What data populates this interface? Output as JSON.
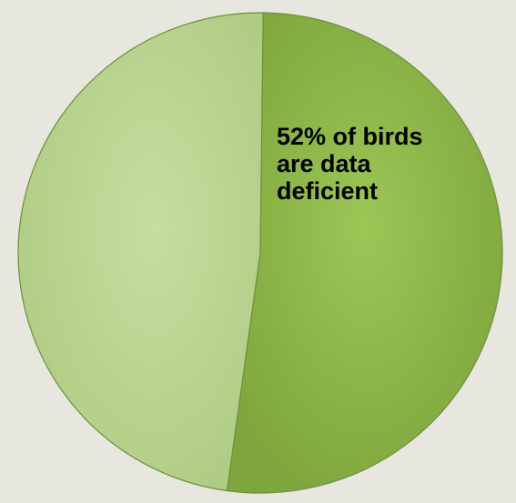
{
  "chart_data": {
    "type": "pie",
    "title": "",
    "slices": [
      {
        "value": 52,
        "label": "52% of birds are data deficient",
        "color": "#8db84a"
      },
      {
        "value": 48,
        "label": "",
        "color": "#bdd795"
      }
    ],
    "start_angle": "top, clockwise",
    "legend": "none",
    "background": "#e7e6df"
  }
}
